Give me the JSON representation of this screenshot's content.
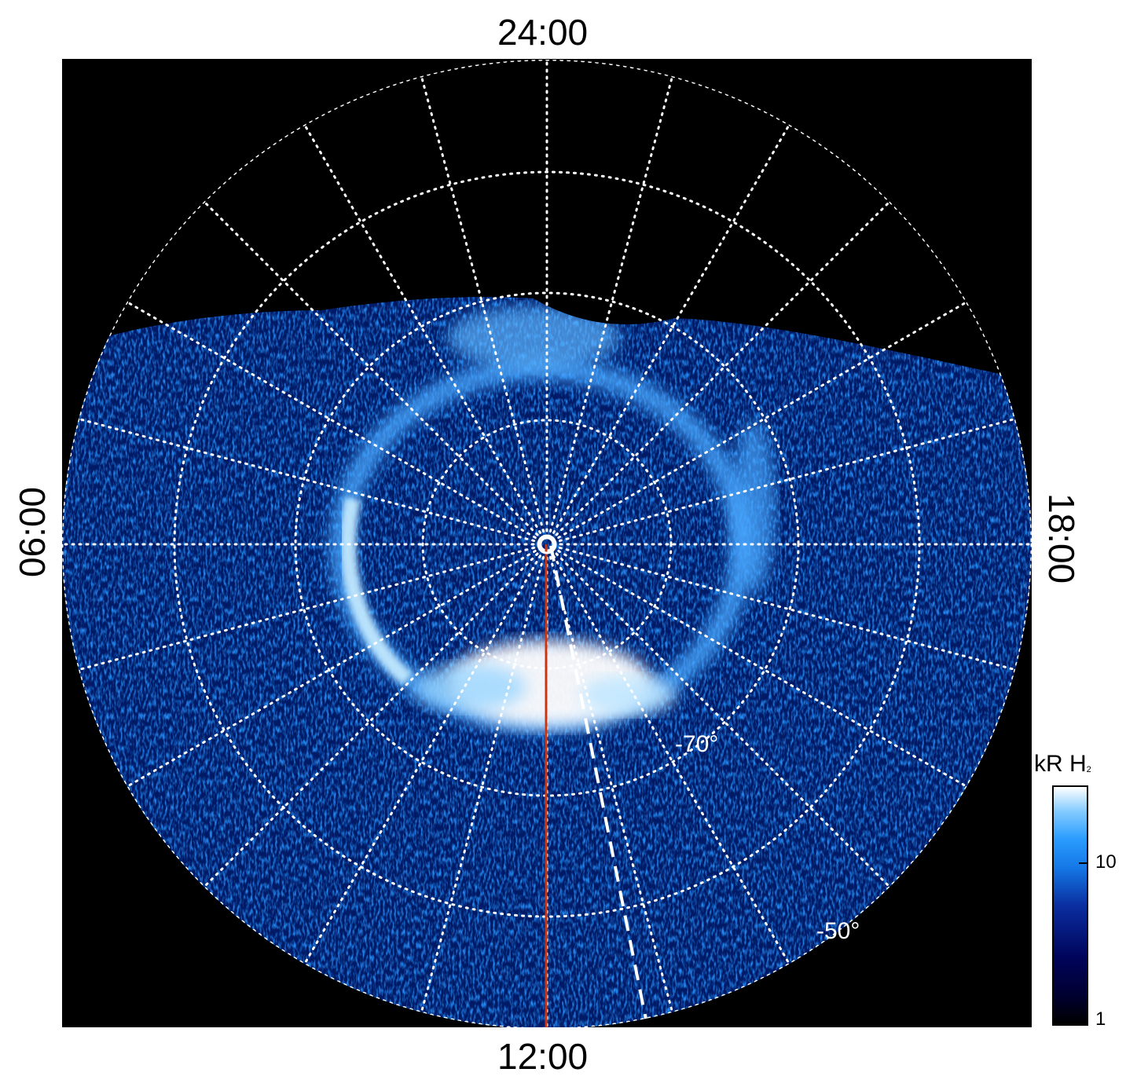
{
  "local_time_labels": {
    "top": "24:00",
    "bottom": "12:00",
    "left": "06:00",
    "right": "18:00"
  },
  "latitude_labels": {
    "inner": "-70°",
    "outer": "-50°"
  },
  "colorbar": {
    "title": "kR H",
    "title_subscript": "2",
    "ticks": [
      "10",
      "1"
    ],
    "scale": "log",
    "colors": [
      "#000000",
      "#000030",
      "#00045a",
      "#0a2ea0",
      "#1578e6",
      "#2a9cff",
      "#86ccff",
      "#ffffff"
    ]
  },
  "colors": {
    "grid": "#ffffff",
    "meridian_line": "#cc3311",
    "background": "#000000"
  }
}
